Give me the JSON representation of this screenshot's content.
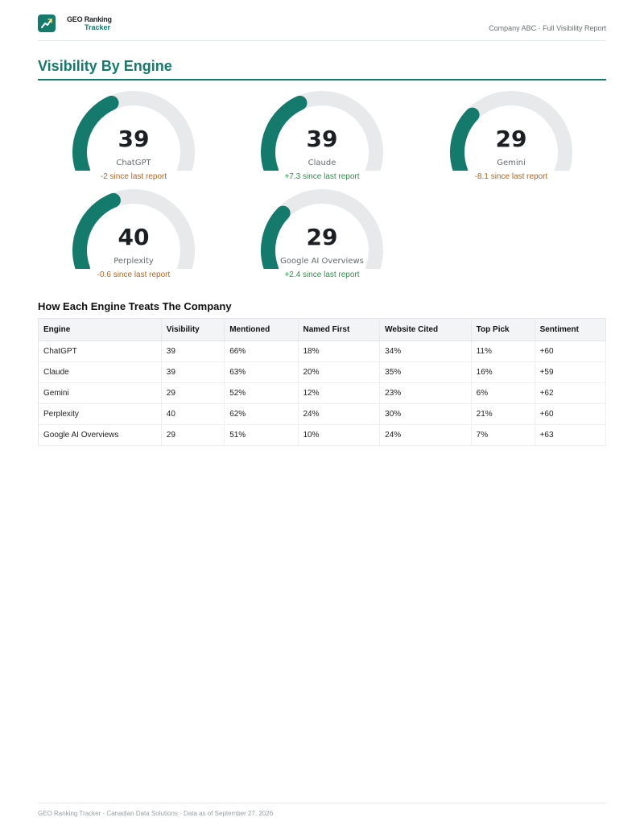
{
  "header": {
    "logo_line1": "GEO Ranking",
    "logo_line2": "Tracker",
    "right_text": "Company ABC · Full Visibility Report"
  },
  "section_title": "Visibility By Engine",
  "colors": {
    "accent": "#137a6c",
    "track": "#e8e9eb",
    "negative": "#b5651d",
    "positive": "#2e9149"
  },
  "gauges": [
    {
      "engine": "ChatGPT",
      "value": 39,
      "change": "-2 since last report",
      "trend": "neg"
    },
    {
      "engine": "Claude",
      "value": 39,
      "change": "+7.3 since last report",
      "trend": "pos"
    },
    {
      "engine": "Gemini",
      "value": 29,
      "change": "-8.1 since last report",
      "trend": "neg"
    },
    {
      "engine": "Perplexity",
      "value": 40,
      "change": "-0.6 since last report",
      "trend": "neg"
    },
    {
      "engine": "Google AI Overviews",
      "value": 29,
      "change": "+2.4 since last report",
      "trend": "pos"
    }
  ],
  "table_title": "How Each Engine Treats The Company",
  "table": {
    "headers": [
      "Engine",
      "Visibility",
      "Mentioned",
      "Named First",
      "Website Cited",
      "Top Pick",
      "Sentiment"
    ],
    "rows": [
      [
        "ChatGPT",
        "39",
        "66%",
        "18%",
        "34%",
        "11%",
        "+60"
      ],
      [
        "Claude",
        "39",
        "63%",
        "20%",
        "35%",
        "16%",
        "+59"
      ],
      [
        "Gemini",
        "29",
        "52%",
        "12%",
        "23%",
        "6%",
        "+62"
      ],
      [
        "Perplexity",
        "40",
        "62%",
        "24%",
        "30%",
        "21%",
        "+60"
      ],
      [
        "Google AI Overviews",
        "29",
        "51%",
        "10%",
        "24%",
        "7%",
        "+63"
      ]
    ]
  },
  "footer": "GEO Ranking Tracker · Canadian Data Solutions · Data as of September 27, 2026"
}
